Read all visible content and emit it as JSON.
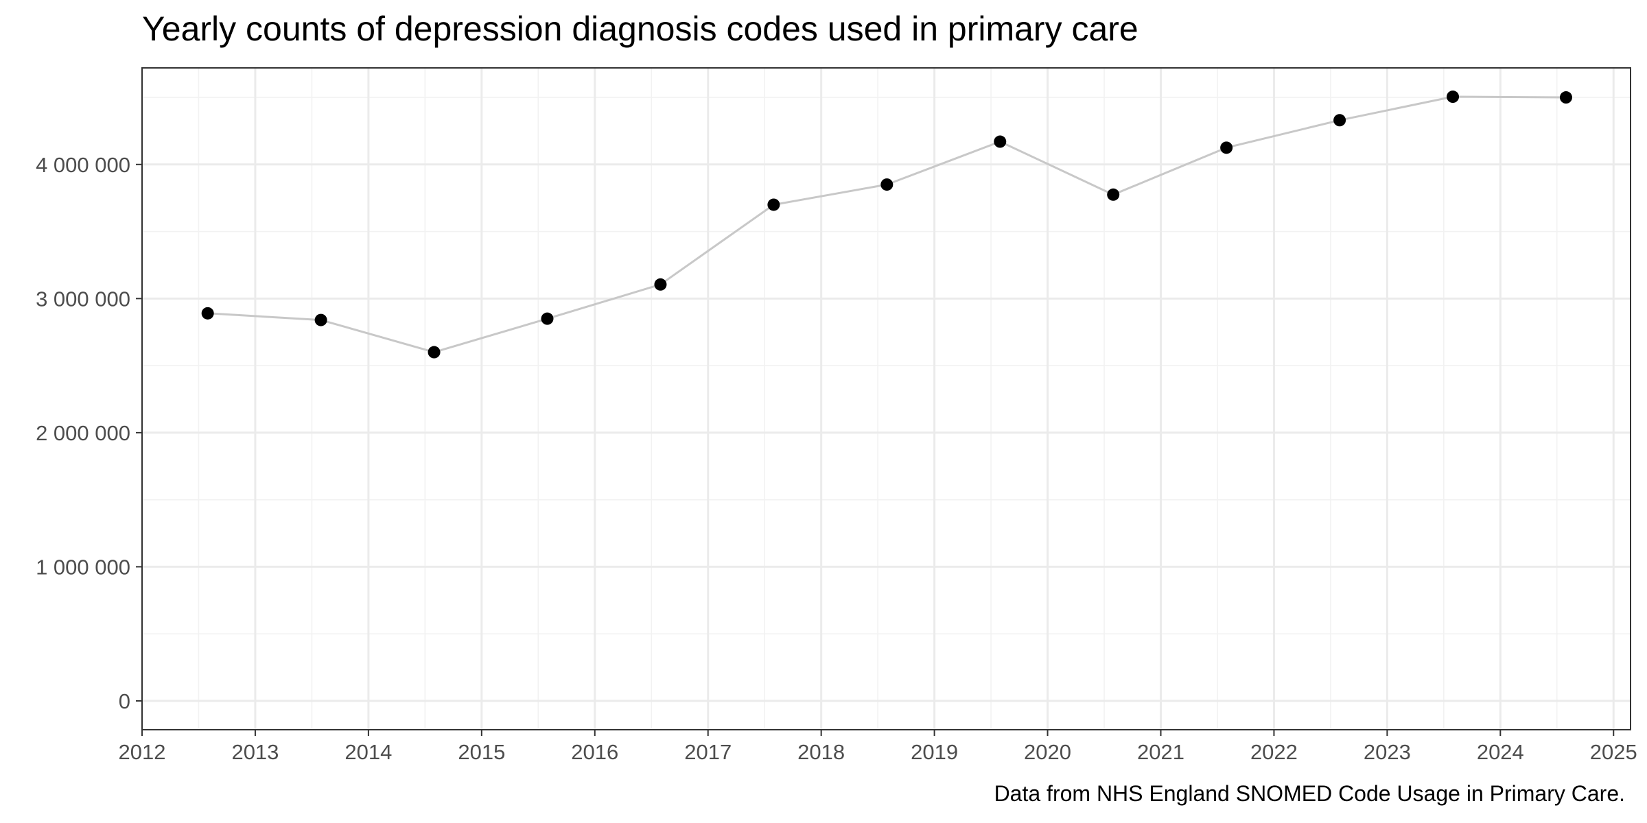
{
  "chart_data": {
    "type": "line",
    "title": "Yearly counts of depression diagnosis codes used in primary care",
    "caption": "Data from NHS England SNOMED Code Usage in Primary Care.",
    "xlabel": "",
    "ylabel": "",
    "x": [
      2012.58,
      2013.58,
      2014.58,
      2015.58,
      2016.58,
      2017.58,
      2018.58,
      2019.58,
      2020.58,
      2021.58,
      2022.58,
      2023.58,
      2024.58
    ],
    "series": [
      {
        "values": [
          2890000,
          2840000,
          2600000,
          2850000,
          3105000,
          3700000,
          3850000,
          4170000,
          3775000,
          4125000,
          4330000,
          4505000,
          4500000
        ]
      }
    ],
    "xlim": [
      2012,
      2025.15
    ],
    "ylim": [
      -215000,
      4720000
    ],
    "x_ticks": [
      2012,
      2013,
      2014,
      2015,
      2016,
      2017,
      2018,
      2019,
      2020,
      2021,
      2022,
      2023,
      2024,
      2025
    ],
    "x_tick_labels": [
      "2012",
      "2013",
      "2014",
      "2015",
      "2016",
      "2017",
      "2018",
      "2019",
      "2020",
      "2021",
      "2022",
      "2023",
      "2024",
      "2025"
    ],
    "y_ticks": [
      0,
      1000000,
      2000000,
      3000000,
      4000000
    ],
    "y_tick_labels": [
      "0",
      "1 000 000",
      "2 000 000",
      "3 000 000",
      "4 000 000"
    ],
    "grid": true,
    "line_color": "#c8c8c8",
    "point_color": "#000000"
  }
}
